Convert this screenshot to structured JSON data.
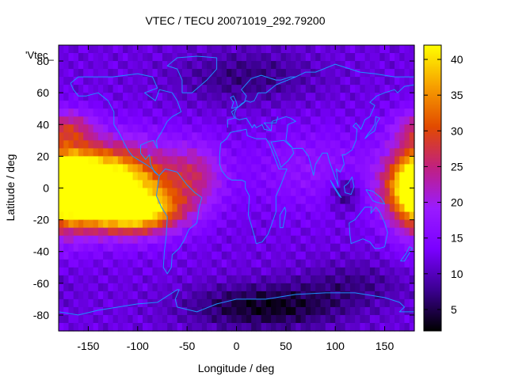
{
  "chart_data": {
    "type": "heatmap",
    "title": "VTEC / TECU 20071019_292.79200",
    "xlabel": "Longitude / deg",
    "ylabel": "Latitude / deg",
    "key_label": "'Vtec_",
    "xlim": [
      -180,
      180
    ],
    "ylim": [
      -90,
      90
    ],
    "xticks": [
      -150,
      -100,
      -50,
      0,
      50,
      100,
      150
    ],
    "yticks": [
      -80,
      -60,
      -40,
      -20,
      0,
      20,
      40,
      60,
      80
    ],
    "colorbar": {
      "min": 2,
      "max": 42,
      "ticks": [
        5,
        10,
        15,
        20,
        25,
        30,
        35,
        40
      ]
    },
    "colormap": [
      "#000000",
      "#3b0090",
      "#7a00ff",
      "#9a1bff",
      "#c02080",
      "#e24a00",
      "#f7a000",
      "#ffff00"
    ],
    "grid": false,
    "background_level_tecu": 12,
    "features": [
      {
        "lon": -160,
        "lat": 0,
        "tecu": 34,
        "sigma_lon": 28,
        "sigma_lat": 14
      },
      {
        "lon": -115,
        "lat": 2,
        "tecu": 26,
        "sigma_lon": 40,
        "sigma_lat": 18
      },
      {
        "lon": -100,
        "lat": -15,
        "tecu": 22,
        "sigma_lon": 30,
        "sigma_lat": 9
      },
      {
        "lon": -40,
        "lat": 8,
        "tecu": 9,
        "sigma_lon": 20,
        "sigma_lat": 15
      },
      {
        "lon": -170,
        "lat": 38,
        "tecu": 11,
        "sigma_lon": 20,
        "sigma_lat": 8
      },
      {
        "lon": 180,
        "lat": 0,
        "tecu": 14,
        "sigma_lon": 20,
        "sigma_lat": 22
      },
      {
        "lon": 80,
        "lat": 12,
        "tecu": 5,
        "sigma_lon": 50,
        "sigma_lat": 18
      },
      {
        "lon": 30,
        "lat": -75,
        "tecu": -9,
        "sigma_lon": 55,
        "sigma_lat": 10
      },
      {
        "lon": 110,
        "lat": -3,
        "tecu": -7,
        "sigma_lon": 12,
        "sigma_lat": 8
      },
      {
        "lon": 10,
        "lat": 70,
        "tecu": -5,
        "sigma_lon": 50,
        "sigma_lat": 12
      },
      {
        "lon": 120,
        "lat": -60,
        "tecu": -4,
        "sigma_lon": 40,
        "sigma_lat": 10
      }
    ],
    "coastlines": [
      {
        "name": "North America",
        "points": [
          [
            -168,
            66
          ],
          [
            -160,
            70
          ],
          [
            -140,
            70
          ],
          [
            -125,
            70
          ],
          [
            -100,
            72
          ],
          [
            -85,
            70
          ],
          [
            -80,
            63
          ],
          [
            -93,
            60
          ],
          [
            -82,
            55
          ],
          [
            -78,
            62
          ],
          [
            -65,
            60
          ],
          [
            -60,
            55
          ],
          [
            -56,
            48
          ],
          [
            -65,
            45
          ],
          [
            -70,
            42
          ],
          [
            -76,
            35
          ],
          [
            -81,
            30
          ],
          [
            -80,
            25
          ],
          [
            -84,
            30
          ],
          [
            -90,
            29
          ],
          [
            -97,
            27
          ],
          [
            -97,
            22
          ],
          [
            -92,
            18
          ],
          [
            -88,
            21
          ],
          [
            -87,
            15
          ],
          [
            -83,
            10
          ],
          [
            -79,
            8
          ],
          [
            -85,
            12
          ],
          [
            -92,
            15
          ],
          [
            -105,
            20
          ],
          [
            -110,
            24
          ],
          [
            -115,
            30
          ],
          [
            -118,
            34
          ],
          [
            -124,
            40
          ],
          [
            -124,
            48
          ],
          [
            -130,
            55
          ],
          [
            -140,
            60
          ],
          [
            -152,
            58
          ],
          [
            -160,
            58
          ],
          [
            -165,
            62
          ],
          [
            -168,
            66
          ]
        ]
      },
      {
        "name": "Greenland",
        "points": [
          [
            -55,
            60
          ],
          [
            -45,
            60
          ],
          [
            -30,
            68
          ],
          [
            -20,
            75
          ],
          [
            -20,
            82
          ],
          [
            -40,
            83
          ],
          [
            -60,
            82
          ],
          [
            -70,
            77
          ],
          [
            -60,
            75
          ],
          [
            -55,
            68
          ],
          [
            -55,
            60
          ]
        ]
      },
      {
        "name": "South America",
        "points": [
          [
            -78,
            8
          ],
          [
            -72,
            12
          ],
          [
            -60,
            10
          ],
          [
            -50,
            2
          ],
          [
            -42,
            -3
          ],
          [
            -35,
            -6
          ],
          [
            -38,
            -13
          ],
          [
            -40,
            -22
          ],
          [
            -48,
            -26
          ],
          [
            -53,
            -33
          ],
          [
            -58,
            -38
          ],
          [
            -65,
            -42
          ],
          [
            -66,
            -50
          ],
          [
            -70,
            -54
          ],
          [
            -74,
            -50
          ],
          [
            -73,
            -40
          ],
          [
            -71,
            -30
          ],
          [
            -70,
            -18
          ],
          [
            -76,
            -12
          ],
          [
            -81,
            -5
          ],
          [
            -80,
            0
          ],
          [
            -78,
            8
          ]
        ]
      },
      {
        "name": "Europe",
        "points": [
          [
            -9,
            38
          ],
          [
            -9,
            43
          ],
          [
            -2,
            44
          ],
          [
            -5,
            48
          ],
          [
            2,
            51
          ],
          [
            8,
            54
          ],
          [
            10,
            58
          ],
          [
            5,
            62
          ],
          [
            15,
            69
          ],
          [
            25,
            71
          ],
          [
            40,
            68
          ],
          [
            45,
            68
          ],
          [
            55,
            70
          ],
          [
            60,
            70
          ],
          [
            40,
            65
          ],
          [
            30,
            60
          ],
          [
            22,
            60
          ],
          [
            18,
            55
          ],
          [
            14,
            54
          ],
          [
            10,
            55
          ],
          [
            5,
            53
          ],
          [
            0,
            50
          ],
          [
            -2,
            47
          ],
          [
            -1,
            44
          ],
          [
            3,
            43
          ],
          [
            10,
            44
          ],
          [
            16,
            38
          ],
          [
            18,
            40
          ],
          [
            20,
            38
          ],
          [
            26,
            40
          ],
          [
            28,
            37
          ],
          [
            35,
            36
          ],
          [
            28,
            41
          ],
          [
            40,
            41
          ],
          [
            42,
            45
          ]
        ]
      },
      {
        "name": "Africa",
        "points": [
          [
            -17,
            21
          ],
          [
            -16,
            28
          ],
          [
            -10,
            31
          ],
          [
            -6,
            35
          ],
          [
            10,
            37
          ],
          [
            11,
            33
          ],
          [
            20,
            31
          ],
          [
            30,
            31
          ],
          [
            33,
            28
          ],
          [
            37,
            22
          ],
          [
            43,
            12
          ],
          [
            51,
            12
          ],
          [
            45,
            2
          ],
          [
            40,
            -5
          ],
          [
            40,
            -15
          ],
          [
            35,
            -24
          ],
          [
            32,
            -29
          ],
          [
            26,
            -34
          ],
          [
            20,
            -35
          ],
          [
            18,
            -30
          ],
          [
            12,
            -17
          ],
          [
            13,
            -5
          ],
          [
            9,
            0
          ],
          [
            9,
            4
          ],
          [
            5,
            5
          ],
          [
            -5,
            5
          ],
          [
            -10,
            7
          ],
          [
            -15,
            11
          ],
          [
            -17,
            15
          ],
          [
            -17,
            21
          ]
        ]
      },
      {
        "name": "Asia",
        "points": [
          [
            35,
            36
          ],
          [
            36,
            42
          ],
          [
            50,
            45
          ],
          [
            55,
            44
          ],
          [
            60,
            42
          ],
          [
            52,
            40
          ],
          [
            50,
            30
          ],
          [
            56,
            26
          ],
          [
            58,
            22
          ],
          [
            52,
            17
          ],
          [
            45,
            13
          ],
          [
            43,
            17
          ],
          [
            35,
            29
          ],
          [
            48,
            30
          ],
          [
            57,
            25
          ],
          [
            62,
            25
          ],
          [
            67,
            25
          ],
          [
            73,
            20
          ],
          [
            78,
            8
          ],
          [
            80,
            15
          ],
          [
            87,
            22
          ],
          [
            92,
            22
          ],
          [
            94,
            17
          ],
          [
            98,
            10
          ],
          [
            103,
            1
          ],
          [
            101,
            12
          ],
          [
            105,
            10
          ],
          [
            109,
            15
          ],
          [
            107,
            21
          ],
          [
            110,
            21
          ],
          [
            117,
            24
          ],
          [
            121,
            30
          ],
          [
            122,
            37
          ],
          [
            118,
            39
          ],
          [
            121,
            41
          ],
          [
            126,
            37
          ],
          [
            130,
            43
          ],
          [
            135,
            45
          ],
          [
            140,
            52
          ],
          [
            135,
            54
          ],
          [
            142,
            58
          ],
          [
            150,
            60
          ],
          [
            160,
            62
          ],
          [
            163,
            60
          ],
          [
            170,
            64
          ],
          [
            180,
            65
          ],
          [
            180,
            70
          ],
          [
            160,
            70
          ],
          [
            140,
            72
          ],
          [
            125,
            73
          ],
          [
            110,
            76
          ],
          [
            100,
            78
          ],
          [
            80,
            73
          ],
          [
            70,
            73
          ],
          [
            60,
            70
          ]
        ]
      },
      {
        "name": "Australia",
        "points": [
          [
            114,
            -22
          ],
          [
            120,
            -20
          ],
          [
            130,
            -12
          ],
          [
            137,
            -12
          ],
          [
            136,
            -16
          ],
          [
            141,
            -12
          ],
          [
            145,
            -15
          ],
          [
            150,
            -22
          ],
          [
            153,
            -28
          ],
          [
            150,
            -37
          ],
          [
            145,
            -38
          ],
          [
            140,
            -38
          ],
          [
            135,
            -34
          ],
          [
            128,
            -32
          ],
          [
            116,
            -35
          ],
          [
            115,
            -30
          ],
          [
            114,
            -22
          ]
        ]
      },
      {
        "name": "Japan",
        "points": [
          [
            130,
            31
          ],
          [
            135,
            34
          ],
          [
            140,
            36
          ],
          [
            142,
            41
          ],
          [
            145,
            44
          ],
          [
            141,
            45
          ],
          [
            140,
            40
          ],
          [
            137,
            37
          ],
          [
            133,
            34
          ],
          [
            130,
            31
          ]
        ]
      },
      {
        "name": "Borneo",
        "points": [
          [
            109,
            1
          ],
          [
            110,
            -3
          ],
          [
            116,
            -4
          ],
          [
            119,
            1
          ],
          [
            117,
            7
          ],
          [
            113,
            3
          ],
          [
            109,
            1
          ]
        ]
      },
      {
        "name": "Sumatra",
        "points": [
          [
            95,
            5
          ],
          [
            100,
            0
          ],
          [
            106,
            -6
          ],
          [
            104,
            -5
          ],
          [
            98,
            1
          ],
          [
            95,
            5
          ]
        ]
      },
      {
        "name": "New Guinea",
        "points": [
          [
            131,
            -1
          ],
          [
            138,
            -2
          ],
          [
            146,
            -6
          ],
          [
            150,
            -10
          ],
          [
            142,
            -9
          ],
          [
            138,
            -8
          ],
          [
            131,
            -1
          ]
        ]
      },
      {
        "name": "New Zealand",
        "points": [
          [
            166,
            -46
          ],
          [
            172,
            -41
          ],
          [
            175,
            -37
          ],
          [
            178,
            -38
          ],
          [
            174,
            -42
          ],
          [
            170,
            -46
          ],
          [
            166,
            -46
          ]
        ]
      },
      {
        "name": "Madagascar",
        "points": [
          [
            44,
            -25
          ],
          [
            47,
            -25
          ],
          [
            50,
            -15
          ],
          [
            49,
            -12
          ],
          [
            44,
            -17
          ],
          [
            44,
            -25
          ]
        ]
      },
      {
        "name": "UK",
        "points": [
          [
            -5,
            50
          ],
          [
            1,
            51
          ],
          [
            0,
            54
          ],
          [
            -3,
            58
          ],
          [
            -6,
            57
          ],
          [
            -3,
            54
          ],
          [
            -5,
            50
          ]
        ]
      },
      {
        "name": "Antarctica",
        "points": [
          [
            -180,
            -78
          ],
          [
            -160,
            -80
          ],
          [
            -140,
            -77
          ],
          [
            -120,
            -75
          ],
          [
            -100,
            -73
          ],
          [
            -80,
            -72
          ],
          [
            -65,
            -66
          ],
          [
            -60,
            -64
          ],
          [
            -58,
            -64
          ],
          [
            -62,
            -70
          ],
          [
            -60,
            -75
          ],
          [
            -40,
            -78
          ],
          [
            -20,
            -73
          ],
          [
            0,
            -70
          ],
          [
            30,
            -70
          ],
          [
            60,
            -67
          ],
          [
            90,
            -66
          ],
          [
            120,
            -66
          ],
          [
            150,
            -69
          ],
          [
            165,
            -72
          ],
          [
            170,
            -75
          ],
          [
            165,
            -78
          ],
          [
            180,
            -78
          ]
        ]
      }
    ]
  }
}
